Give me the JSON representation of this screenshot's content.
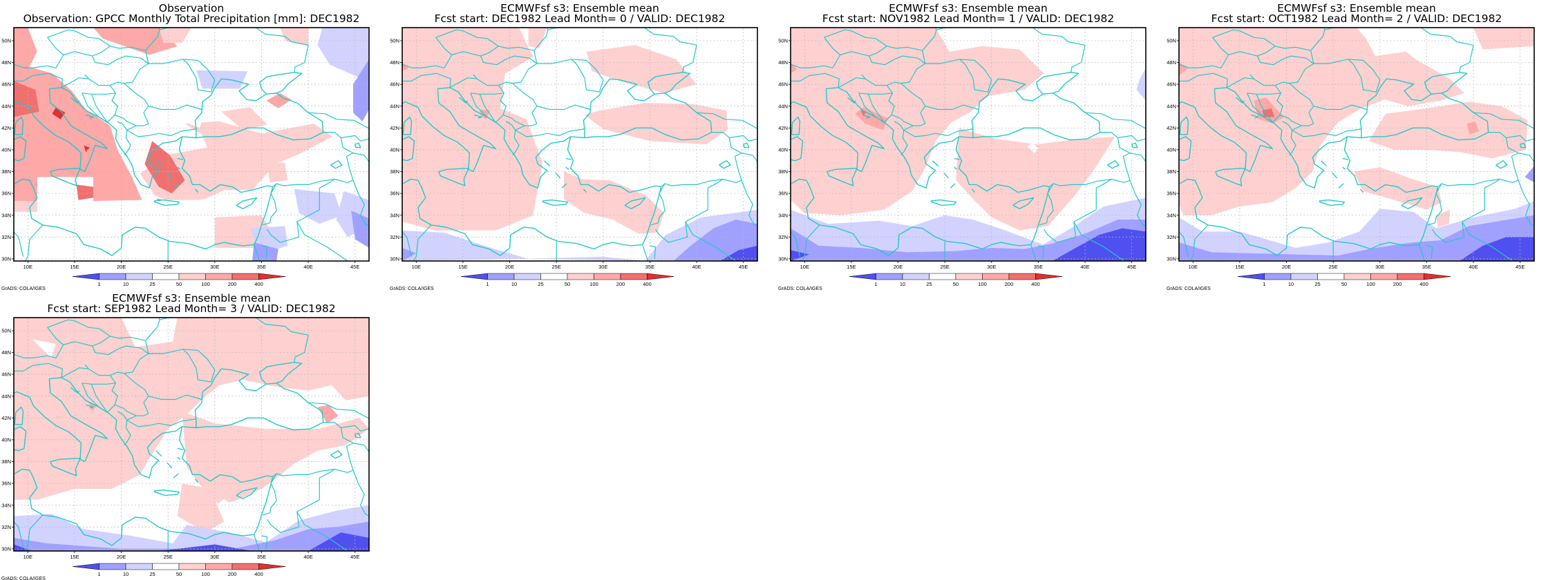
{
  "colors": {
    "coast": "#22c9c9",
    "frame": "#000000",
    "grid": "#b8b8b8",
    "bins": [
      "#5050f0",
      "#a0a0ff",
      "#d2d2ff",
      "#ffffff",
      "#ffd0d0",
      "#ffa8a8",
      "#f07070",
      "#e03030"
    ]
  },
  "legend": {
    "ticks": [
      "1",
      "10",
      "25",
      "50",
      "100",
      "200",
      "400"
    ]
  },
  "axes": {
    "lon_labels": [
      "10E",
      "15E",
      "20E",
      "25E",
      "30E",
      "35E",
      "40E",
      "45E"
    ],
    "lat_labels": [
      "30N",
      "32N",
      "34N",
      "36N",
      "38N",
      "40N",
      "42N",
      "44N",
      "46N",
      "48N",
      "50N"
    ]
  },
  "credit": "GrADS: COLA/IGES",
  "panels": [
    {
      "title_line1": "Observation",
      "title_line2": "Observation: GPCC Monthly Total Precipitation [mm]: DEC1982",
      "variant": "obs"
    },
    {
      "title_line1": "ECMWFsf s3: Ensemble mean",
      "title_line2": "Fcst start: DEC1982  Lead Month= 0 / VALID: DEC1982",
      "variant": "lead0"
    },
    {
      "title_line1": "ECMWFsf s3: Ensemble mean",
      "title_line2": "Fcst start: NOV1982  Lead Month= 1 / VALID: DEC1982",
      "variant": "lead1"
    },
    {
      "title_line1": "ECMWFsf s3: Ensemble mean",
      "title_line2": "Fcst start: OCT1982  Lead Month= 2 / VALID: DEC1982",
      "variant": "lead2"
    },
    {
      "title_line1": "ECMWFsf s3: Ensemble mean",
      "title_line2": "Fcst start: SEP1982  Lead Month= 3 / VALID: DEC1982",
      "variant": "lead3"
    }
  ]
}
